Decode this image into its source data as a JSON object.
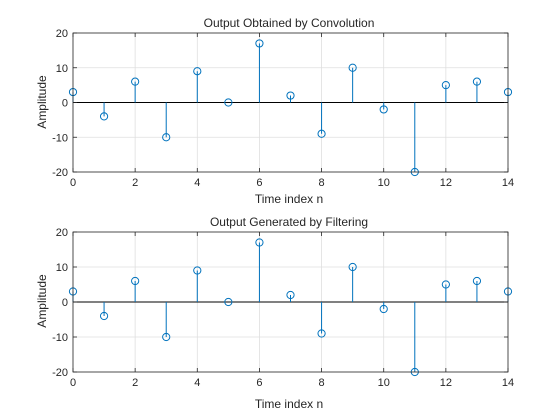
{
  "chart_data": [
    {
      "type": "stem",
      "title": "Output Obtained by Convolution",
      "xlabel": "Time index n",
      "ylabel": "Amplitude",
      "xlim": [
        0,
        14
      ],
      "ylim": [
        -20,
        20
      ],
      "xticks": [
        0,
        2,
        4,
        6,
        8,
        10,
        12,
        14
      ],
      "yticks": [
        -20,
        -10,
        0,
        10,
        20
      ],
      "grid": true,
      "color": "#0072BD",
      "x": [
        0,
        1,
        2,
        3,
        4,
        5,
        6,
        7,
        8,
        9,
        10,
        11,
        12,
        13,
        14
      ],
      "values": [
        3,
        -4,
        6,
        -10,
        9,
        0,
        17,
        2,
        -9,
        10,
        -2,
        -20,
        5,
        6,
        3
      ]
    },
    {
      "type": "stem",
      "title": "Output Generated by Filtering",
      "xlabel": "Time index n",
      "ylabel": "Amplitude",
      "xlim": [
        0,
        14
      ],
      "ylim": [
        -20,
        20
      ],
      "xticks": [
        0,
        2,
        4,
        6,
        8,
        10,
        12,
        14
      ],
      "yticks": [
        -20,
        -10,
        0,
        10,
        20
      ],
      "grid": true,
      "color": "#0072BD",
      "x": [
        0,
        1,
        2,
        3,
        4,
        5,
        6,
        7,
        8,
        9,
        10,
        11,
        12,
        13,
        14
      ],
      "values": [
        3,
        -4,
        6,
        -10,
        9,
        0,
        17,
        2,
        -9,
        10,
        -2,
        -20,
        5,
        6,
        3
      ]
    }
  ]
}
